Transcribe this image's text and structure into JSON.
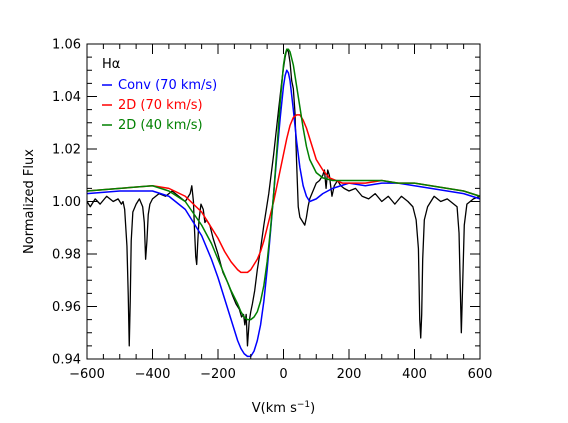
{
  "chart_data": {
    "type": "line",
    "title": "Hα",
    "xlabel": "V(km s",
    "xlabel_exponent": "−1",
    "xlabel_close": ")",
    "ylabel": "Normalized Flux",
    "xlim": [
      -600,
      600
    ],
    "ylim": [
      0.94,
      1.06
    ],
    "xticks": [
      -600,
      -400,
      -200,
      0,
      200,
      400,
      600
    ],
    "xtick_labels": [
      "−600",
      "−400",
      "−200",
      "0",
      "200",
      "400",
      "600"
    ],
    "yticks": [
      0.94,
      0.96,
      0.98,
      1.0,
      1.02,
      1.04,
      1.06
    ],
    "ytick_labels": [
      "0.94",
      "0.96",
      "0.98",
      "1.00",
      "1.02",
      "1.04",
      "1.06"
    ],
    "legend_position": "top-left",
    "series": [
      {
        "name": "",
        "color": "#000000",
        "x": [
          -600,
          -590,
          -575,
          -560,
          -540,
          -520,
          -505,
          -495,
          -490,
          -485,
          -478,
          -474,
          -471,
          -468,
          -465,
          -460,
          -450,
          -440,
          -430,
          -425,
          -421,
          -417,
          -413,
          -408,
          -400,
          -380,
          -360,
          -340,
          -320,
          -300,
          -285,
          -280,
          -275,
          -272,
          -268,
          -265,
          -262,
          -258,
          -252,
          -245,
          -240,
          -235,
          -225,
          -215,
          -200,
          -185,
          -170,
          -155,
          -145,
          -135,
          -128,
          -122,
          -118,
          -114,
          -110,
          -105,
          -100,
          -95,
          -88,
          -80,
          -70,
          -60,
          -45,
          -30,
          -15,
          -5,
          0,
          5,
          10,
          15,
          20,
          25,
          30,
          35,
          40,
          45,
          50,
          55,
          60,
          65,
          70,
          75,
          80,
          90,
          100,
          110,
          120,
          125,
          130,
          135,
          140,
          148,
          155,
          165,
          175,
          185,
          200,
          220,
          240,
          260,
          280,
          300,
          320,
          340,
          360,
          380,
          395,
          405,
          412,
          416,
          419,
          422,
          425,
          430,
          440,
          460,
          480,
          500,
          520,
          530,
          536,
          540,
          543,
          547,
          552,
          560,
          580,
          600
        ],
        "values": [
          1.0,
          0.998,
          1.001,
          0.999,
          1.002,
          1.0,
          1.001,
          0.999,
          1.0,
          0.997,
          0.983,
          0.964,
          0.945,
          0.962,
          0.985,
          0.996,
          0.999,
          1.001,
          0.998,
          0.992,
          0.978,
          0.985,
          0.995,
          0.999,
          1.001,
          1.003,
          1.002,
          1.004,
          1.002,
          1.0,
          1.003,
          1.006,
          1.0,
          0.99,
          0.979,
          0.976,
          0.984,
          0.993,
          0.999,
          0.997,
          0.992,
          0.993,
          0.991,
          0.986,
          0.98,
          0.973,
          0.969,
          0.964,
          0.961,
          0.959,
          0.956,
          0.957,
          0.953,
          0.957,
          0.945,
          0.954,
          0.958,
          0.961,
          0.966,
          0.974,
          0.982,
          0.991,
          1.003,
          1.018,
          1.035,
          1.046,
          1.051,
          1.055,
          1.058,
          1.057,
          1.053,
          1.046,
          1.043,
          1.034,
          1.015,
          0.998,
          0.994,
          0.993,
          0.992,
          0.991,
          0.994,
          0.998,
          1.001,
          1.004,
          1.007,
          1.008,
          1.01,
          1.012,
          1.005,
          1.012,
          1.01,
          1.002,
          1.006,
          1.008,
          1.006,
          1.005,
          1.004,
          1.005,
          1.002,
          1.001,
          1.003,
          1.0,
          1.002,
          0.999,
          1.002,
          1.0,
          0.998,
          0.993,
          0.982,
          0.955,
          0.948,
          0.957,
          0.978,
          0.993,
          0.998,
          1.002,
          1.0,
          1.001,
          0.999,
          0.998,
          0.988,
          0.966,
          0.95,
          0.968,
          0.991,
          0.999,
          1.001,
          1.002
        ]
      },
      {
        "name": "Conv (70 km/s)",
        "color": "#0000ff",
        "x": [
          -600,
          -500,
          -400,
          -350,
          -300,
          -250,
          -220,
          -200,
          -180,
          -160,
          -150,
          -140,
          -130,
          -120,
          -110,
          -100,
          -90,
          -80,
          -70,
          -60,
          -50,
          -40,
          -30,
          -20,
          -10,
          0,
          5,
          10,
          15,
          20,
          30,
          40,
          50,
          60,
          70,
          80,
          100,
          120,
          150,
          200,
          250,
          300,
          350,
          400,
          450,
          500,
          550,
          600
        ],
        "values": [
          1.003,
          1.004,
          1.004,
          1.002,
          0.997,
          0.987,
          0.978,
          0.971,
          0.963,
          0.955,
          0.951,
          0.947,
          0.944,
          0.942,
          0.941,
          0.941,
          0.943,
          0.947,
          0.953,
          0.962,
          0.974,
          0.988,
          1.003,
          1.018,
          1.032,
          1.044,
          1.048,
          1.05,
          1.049,
          1.046,
          1.035,
          1.023,
          1.013,
          1.006,
          1.002,
          1.0,
          1.001,
          1.003,
          1.005,
          1.007,
          1.006,
          1.007,
          1.007,
          1.006,
          1.005,
          1.004,
          1.003,
          1.001
        ]
      },
      {
        "name": "2D (70 km/s)",
        "color": "#ff0000",
        "x": [
          -600,
          -500,
          -400,
          -350,
          -300,
          -250,
          -220,
          -200,
          -180,
          -160,
          -140,
          -130,
          -120,
          -110,
          -100,
          -90,
          -80,
          -70,
          -60,
          -50,
          -40,
          -30,
          -20,
          -10,
          0,
          10,
          20,
          30,
          40,
          50,
          60,
          70,
          80,
          90,
          100,
          120,
          140,
          160,
          180,
          200,
          250,
          300,
          350,
          400,
          450,
          500,
          550,
          600
        ],
        "values": [
          1.004,
          1.005,
          1.006,
          1.005,
          1.002,
          0.996,
          0.99,
          0.986,
          0.981,
          0.977,
          0.974,
          0.973,
          0.973,
          0.973,
          0.974,
          0.976,
          0.978,
          0.981,
          0.985,
          0.99,
          0.995,
          1.0,
          1.006,
          1.012,
          1.018,
          1.024,
          1.029,
          1.032,
          1.033,
          1.033,
          1.031,
          1.028,
          1.024,
          1.02,
          1.016,
          1.012,
          1.009,
          1.008,
          1.007,
          1.007,
          1.007,
          1.008,
          1.007,
          1.007,
          1.006,
          1.005,
          1.004,
          1.002
        ]
      },
      {
        "name": "2D (40 km/s)",
        "color": "#008000",
        "x": [
          -600,
          -500,
          -400,
          -350,
          -300,
          -250,
          -220,
          -200,
          -180,
          -160,
          -140,
          -130,
          -120,
          -110,
          -100,
          -90,
          -80,
          -70,
          -60,
          -50,
          -40,
          -30,
          -20,
          -10,
          0,
          5,
          10,
          15,
          20,
          30,
          40,
          50,
          60,
          70,
          80,
          100,
          120,
          150,
          200,
          250,
          300,
          350,
          400,
          450,
          500,
          550,
          600
        ],
        "values": [
          1.004,
          1.005,
          1.006,
          1.004,
          1.0,
          0.991,
          0.984,
          0.978,
          0.972,
          0.966,
          0.961,
          0.958,
          0.956,
          0.955,
          0.955,
          0.956,
          0.958,
          0.962,
          0.968,
          0.977,
          0.989,
          1.003,
          1.02,
          1.038,
          1.052,
          1.056,
          1.058,
          1.058,
          1.057,
          1.052,
          1.044,
          1.036,
          1.028,
          1.021,
          1.016,
          1.011,
          1.009,
          1.008,
          1.008,
          1.008,
          1.008,
          1.007,
          1.007,
          1.006,
          1.005,
          1.004,
          1.002
        ]
      }
    ]
  }
}
